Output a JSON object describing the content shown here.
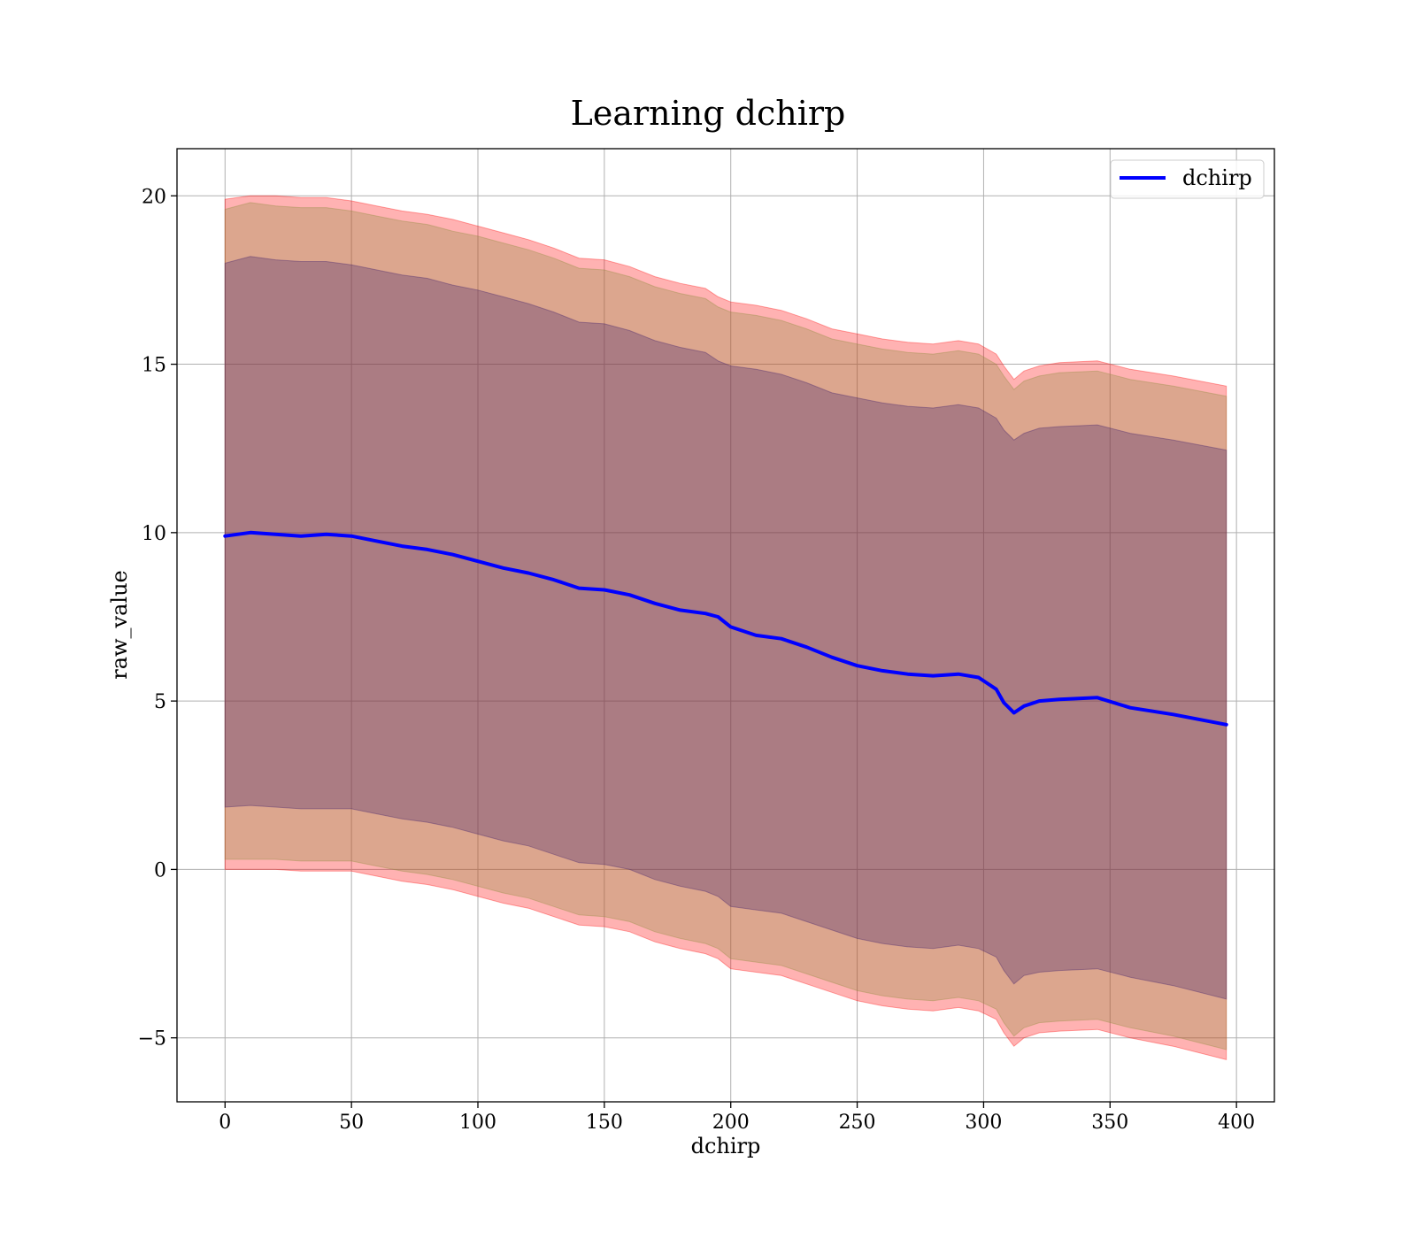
{
  "chart_data": {
    "type": "line",
    "title": "Learning dchirp",
    "xlabel": "dchirp",
    "ylabel": "raw_value",
    "xlim": [
      -19,
      415
    ],
    "ylim": [
      -6.9,
      21.4
    ],
    "x_ticks": [
      0,
      50,
      100,
      150,
      200,
      250,
      300,
      350,
      400
    ],
    "x_tick_labels": [
      "0",
      "50",
      "100",
      "150",
      "200",
      "250",
      "300",
      "350",
      "400"
    ],
    "y_ticks": [
      -5,
      0,
      5,
      10,
      15,
      20
    ],
    "y_tick_labels": [
      "−5",
      "0",
      "5",
      "10",
      "15",
      "20"
    ],
    "grid": true,
    "legend": {
      "position": "top-right",
      "entries": [
        "dchirp"
      ]
    },
    "x": [
      0,
      10,
      20,
      30,
      40,
      50,
      60,
      70,
      80,
      90,
      100,
      110,
      120,
      130,
      140,
      150,
      160,
      170,
      180,
      190,
      195,
      200,
      210,
      220,
      230,
      240,
      250,
      260,
      270,
      280,
      290,
      298,
      305,
      308,
      312,
      316,
      322,
      330,
      345,
      358,
      375,
      396
    ],
    "series": [
      {
        "name": "dchirp",
        "color": "#0000ff",
        "values": [
          9.9,
          10.0,
          9.95,
          9.9,
          9.95,
          9.9,
          9.75,
          9.6,
          9.5,
          9.35,
          9.15,
          8.95,
          8.8,
          8.6,
          8.35,
          8.3,
          8.15,
          7.9,
          7.7,
          7.6,
          7.5,
          7.2,
          6.95,
          6.85,
          6.6,
          6.3,
          6.05,
          5.9,
          5.8,
          5.75,
          5.8,
          5.7,
          5.35,
          4.95,
          4.65,
          4.85,
          5.0,
          5.05,
          5.1,
          4.8,
          4.6,
          4.3
        ]
      }
    ],
    "bands": [
      {
        "name": "outer band",
        "color": "#ff0000",
        "opacity": 0.3,
        "upper": [
          19.9,
          20.0,
          20.0,
          19.95,
          19.95,
          19.85,
          19.7,
          19.55,
          19.45,
          19.3,
          19.1,
          18.9,
          18.7,
          18.45,
          18.15,
          18.1,
          17.9,
          17.6,
          17.4,
          17.25,
          17.0,
          16.85,
          16.75,
          16.6,
          16.35,
          16.05,
          15.9,
          15.75,
          15.65,
          15.6,
          15.7,
          15.6,
          15.3,
          14.95,
          14.55,
          14.8,
          14.95,
          15.05,
          15.1,
          14.85,
          14.65,
          14.35
        ],
        "lower": [
          0.0,
          0.0,
          0.0,
          -0.05,
          -0.05,
          -0.05,
          -0.2,
          -0.35,
          -0.45,
          -0.6,
          -0.8,
          -1.0,
          -1.15,
          -1.4,
          -1.65,
          -1.7,
          -1.85,
          -2.15,
          -2.35,
          -2.5,
          -2.65,
          -2.95,
          -3.05,
          -3.15,
          -3.4,
          -3.65,
          -3.9,
          -4.05,
          -4.15,
          -4.2,
          -4.1,
          -4.2,
          -4.45,
          -4.85,
          -5.25,
          -5.0,
          -4.85,
          -4.8,
          -4.75,
          -5.0,
          -5.25,
          -5.65
        ]
      },
      {
        "name": "middle band",
        "color": "#8b8b3a",
        "opacity": 0.3,
        "upper": [
          19.6,
          19.8,
          19.7,
          19.65,
          19.65,
          19.55,
          19.4,
          19.25,
          19.15,
          18.95,
          18.8,
          18.6,
          18.4,
          18.15,
          17.85,
          17.8,
          17.6,
          17.3,
          17.1,
          16.95,
          16.7,
          16.55,
          16.45,
          16.3,
          16.05,
          15.75,
          15.6,
          15.45,
          15.35,
          15.3,
          15.4,
          15.3,
          15.0,
          14.65,
          14.25,
          14.5,
          14.65,
          14.75,
          14.8,
          14.55,
          14.35,
          14.05
        ],
        "lower": [
          0.3,
          0.3,
          0.3,
          0.25,
          0.25,
          0.25,
          0.1,
          -0.05,
          -0.15,
          -0.3,
          -0.5,
          -0.7,
          -0.85,
          -1.1,
          -1.35,
          -1.4,
          -1.55,
          -1.85,
          -2.05,
          -2.2,
          -2.35,
          -2.65,
          -2.75,
          -2.85,
          -3.1,
          -3.35,
          -3.6,
          -3.75,
          -3.85,
          -3.9,
          -3.8,
          -3.9,
          -4.15,
          -4.55,
          -4.95,
          -4.7,
          -4.55,
          -4.5,
          -4.45,
          -4.7,
          -4.95,
          -5.35
        ]
      },
      {
        "name": "inner band",
        "color": "#3a1a6a",
        "opacity": 0.3,
        "upper": [
          18.0,
          18.2,
          18.1,
          18.05,
          18.05,
          17.95,
          17.8,
          17.65,
          17.55,
          17.35,
          17.2,
          17.0,
          16.8,
          16.55,
          16.25,
          16.2,
          16.0,
          15.7,
          15.5,
          15.35,
          15.1,
          14.95,
          14.85,
          14.7,
          14.45,
          14.15,
          14.0,
          13.85,
          13.75,
          13.7,
          13.8,
          13.7,
          13.4,
          13.05,
          12.75,
          12.95,
          13.1,
          13.15,
          13.2,
          12.95,
          12.75,
          12.45
        ],
        "lower": [
          1.85,
          1.9,
          1.85,
          1.8,
          1.8,
          1.8,
          1.65,
          1.5,
          1.4,
          1.25,
          1.05,
          0.85,
          0.7,
          0.45,
          0.2,
          0.15,
          0.0,
          -0.3,
          -0.5,
          -0.65,
          -0.8,
          -1.1,
          -1.2,
          -1.3,
          -1.55,
          -1.8,
          -2.05,
          -2.2,
          -2.3,
          -2.35,
          -2.25,
          -2.35,
          -2.6,
          -3.0,
          -3.4,
          -3.15,
          -3.05,
          -3.0,
          -2.95,
          -3.2,
          -3.45,
          -3.85
        ]
      }
    ]
  }
}
